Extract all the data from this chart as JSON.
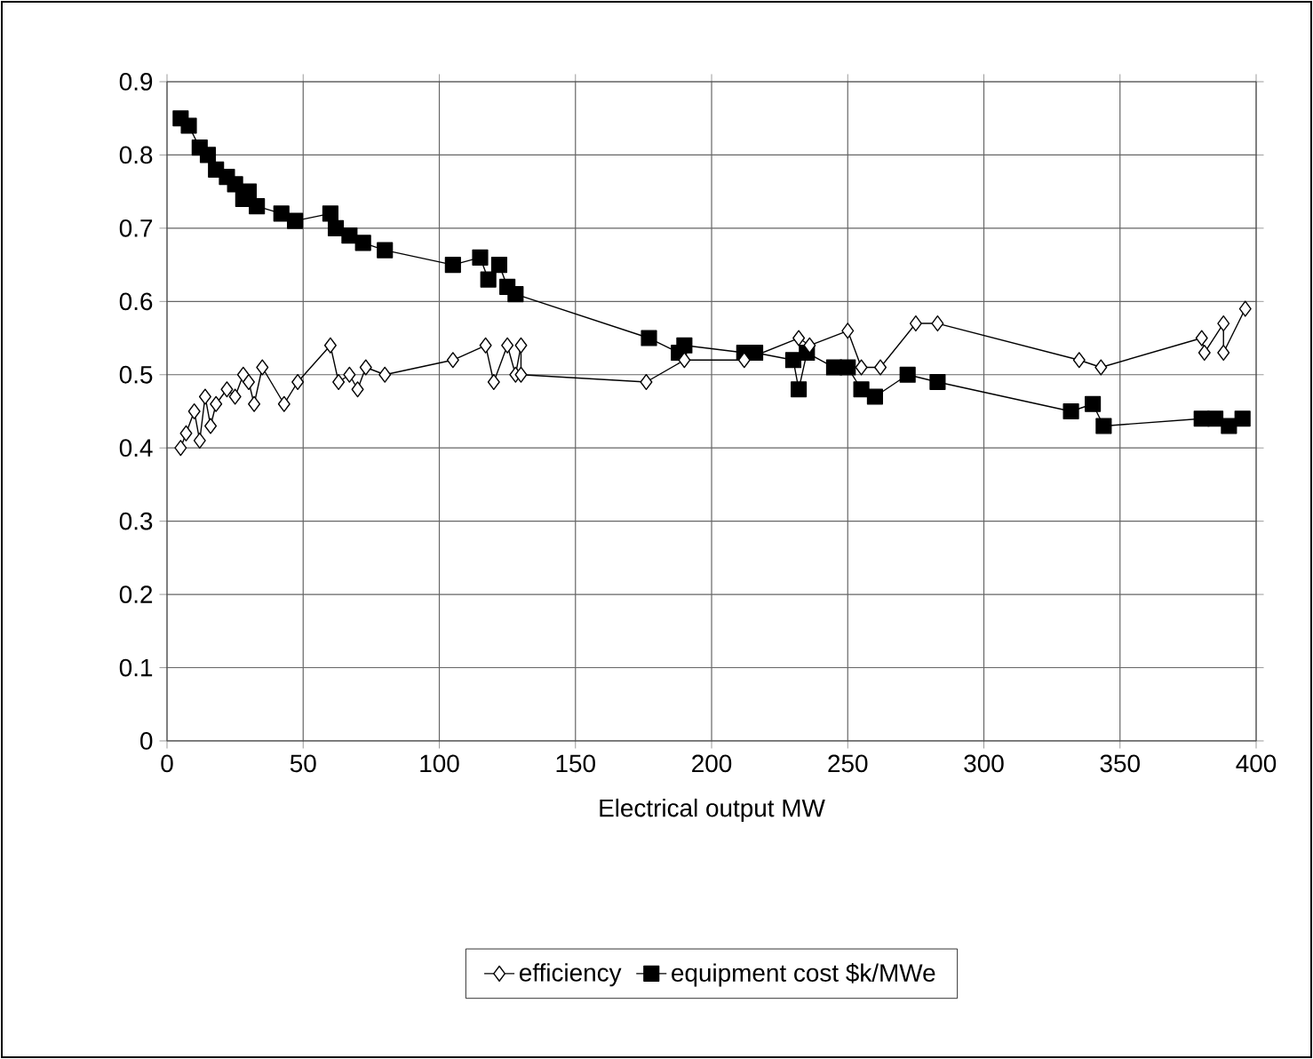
{
  "chart_data": {
    "type": "line",
    "xlabel": "Electrical output MW",
    "xlim": [
      0,
      400
    ],
    "xticks": [
      0,
      50,
      100,
      150,
      200,
      250,
      300,
      350,
      400
    ],
    "ylim": [
      0,
      0.9
    ],
    "yticks": [
      0,
      0.1,
      0.2,
      0.3,
      0.4,
      0.5,
      0.6,
      0.7,
      0.8,
      0.9
    ],
    "grid": true,
    "legend": "bottom",
    "line_style": "solid",
    "series": [
      {
        "name": "efficiency",
        "color": "#000000",
        "marker": "diamond",
        "x": [
          5,
          7,
          10,
          12,
          14,
          16,
          18,
          22,
          25,
          28,
          30,
          32,
          35,
          43,
          48,
          60,
          63,
          67,
          70,
          73,
          80,
          105,
          117,
          120,
          125,
          128,
          130,
          130,
          176,
          190,
          212,
          232,
          236,
          250,
          255,
          262,
          275,
          283,
          335,
          343,
          380,
          381,
          388,
          388,
          396
        ],
        "values": [
          0.4,
          0.42,
          0.45,
          0.41,
          0.47,
          0.43,
          0.46,
          0.48,
          0.47,
          0.5,
          0.49,
          0.46,
          0.51,
          0.46,
          0.49,
          0.54,
          0.49,
          0.5,
          0.48,
          0.51,
          0.5,
          0.52,
          0.54,
          0.49,
          0.54,
          0.5,
          0.54,
          0.5,
          0.49,
          0.52,
          0.52,
          0.55,
          0.54,
          0.56,
          0.51,
          0.51,
          0.57,
          0.57,
          0.52,
          0.51,
          0.55,
          0.53,
          0.57,
          0.53,
          0.59
        ]
      },
      {
        "name": "equipment cost $k/MWe",
        "color": "#000000",
        "marker": "square",
        "x": [
          5,
          8,
          12,
          15,
          18,
          22,
          25,
          28,
          30,
          33,
          42,
          47,
          60,
          62,
          67,
          72,
          80,
          105,
          115,
          118,
          122,
          125,
          128,
          177,
          188,
          190,
          212,
          216,
          230,
          232,
          235,
          245,
          250,
          255,
          260,
          272,
          283,
          332,
          340,
          344,
          380,
          385,
          390,
          395
        ],
        "values": [
          0.85,
          0.84,
          0.81,
          0.8,
          0.78,
          0.77,
          0.76,
          0.74,
          0.75,
          0.73,
          0.72,
          0.71,
          0.72,
          0.7,
          0.69,
          0.68,
          0.67,
          0.65,
          0.66,
          0.63,
          0.65,
          0.62,
          0.61,
          0.55,
          0.53,
          0.54,
          0.53,
          0.53,
          0.52,
          0.48,
          0.53,
          0.51,
          0.51,
          0.48,
          0.47,
          0.5,
          0.49,
          0.45,
          0.46,
          0.43,
          0.44,
          0.44,
          0.43,
          0.44
        ]
      }
    ]
  }
}
